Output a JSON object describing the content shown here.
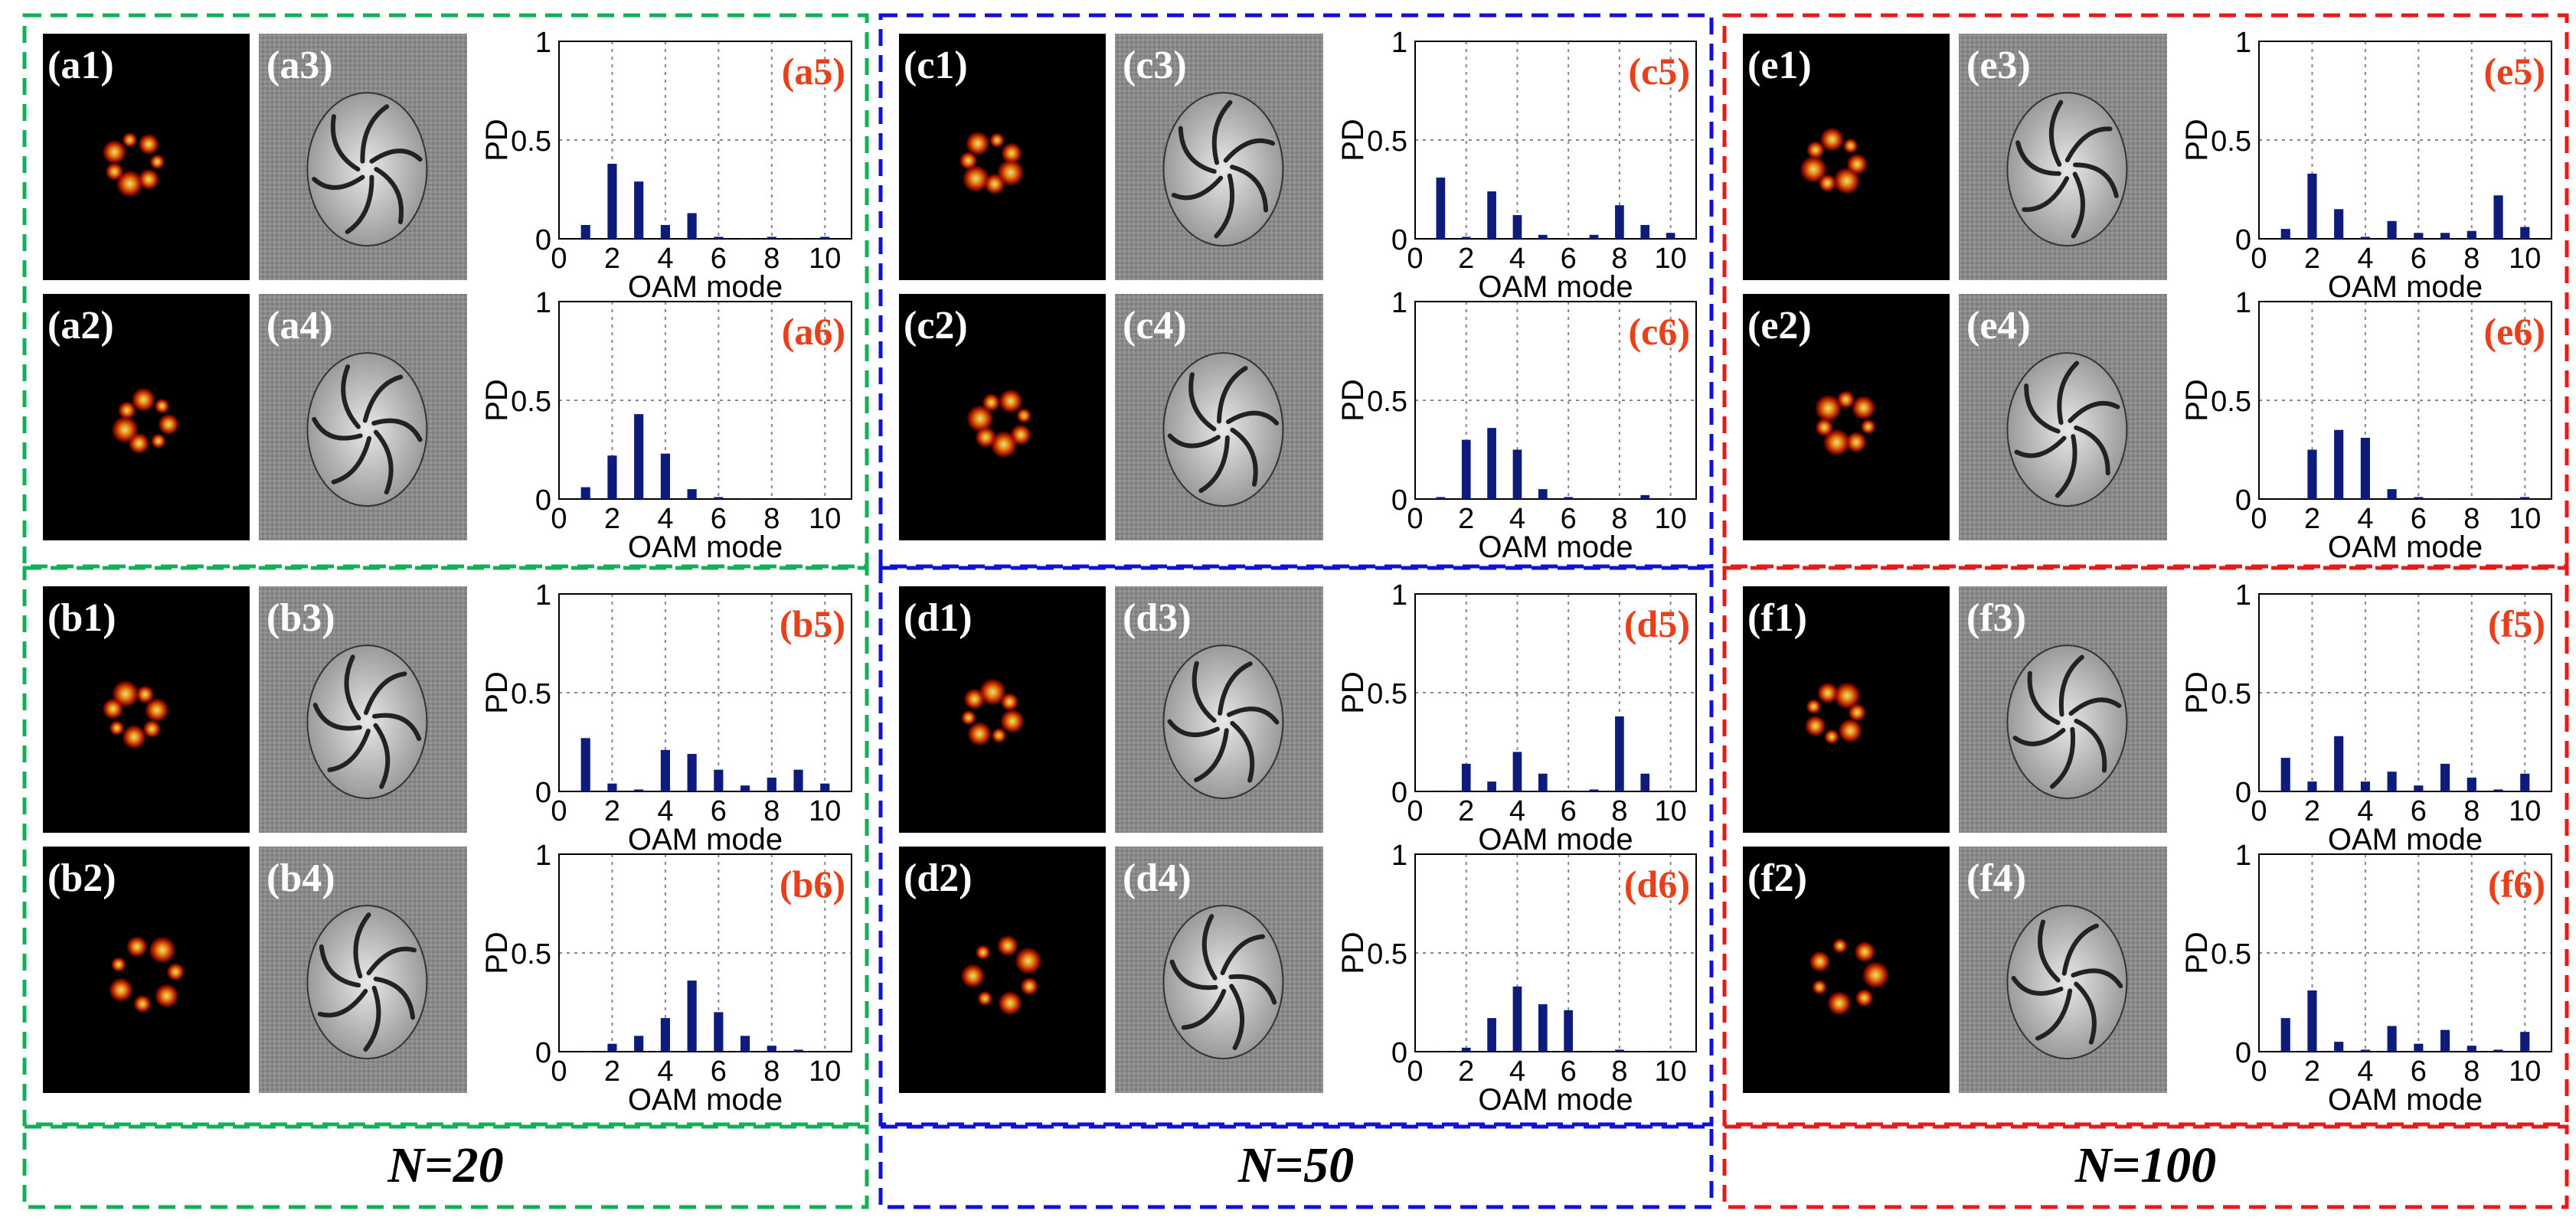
{
  "colors": {
    "group_borders": [
      "#13b05a",
      "#1010d8",
      "#e8191a"
    ],
    "bar": "#0d1b7a",
    "chart_label": "#e8401a",
    "intensity_bg": "#000000",
    "phase_bg": "#808080"
  },
  "n_labels": [
    "N=20",
    "N=50",
    "N=100"
  ],
  "chart_axis": {
    "ylabel": "PD",
    "xlabel": "OAM mode",
    "yticks": [
      "0",
      "0.5",
      "1"
    ],
    "xticks": [
      "0",
      "2",
      "4",
      "6",
      "8",
      "10"
    ]
  },
  "blocks": [
    {
      "intensity_labels": [
        "(a1)",
        "(a2)"
      ],
      "phase_labels": [
        "(a3)",
        "(a4)"
      ]
    },
    {
      "intensity_labels": [
        "(b1)",
        "(b2)"
      ],
      "phase_labels": [
        "(b3)",
        "(b4)"
      ]
    },
    {
      "intensity_labels": [
        "(c1)",
        "(c2)"
      ],
      "phase_labels": [
        "(c3)",
        "(c4)"
      ]
    },
    {
      "intensity_labels": [
        "(d1)",
        "(d2)"
      ],
      "phase_labels": [
        "(d3)",
        "(d4)"
      ]
    },
    {
      "intensity_labels": [
        "(e1)",
        "(e2)"
      ],
      "phase_labels": [
        "(e3)",
        "(e4)"
      ]
    },
    {
      "intensity_labels": [
        "(f1)",
        "(f2)"
      ],
      "phase_labels": [
        "(f3)",
        "(f4)"
      ]
    }
  ],
  "chart_data": [
    {
      "type": "bar",
      "label": "(a5)",
      "xlabel": "OAM mode",
      "ylabel": "PD",
      "ylim": [
        0,
        1
      ],
      "xlim": [
        0,
        11
      ],
      "grid": true,
      "x": [
        1,
        2,
        3,
        4,
        5,
        6,
        7,
        8,
        9,
        10
      ],
      "values": [
        0.07,
        0.38,
        0.29,
        0.07,
        0.13,
        0.01,
        0.0,
        0.01,
        0.0,
        0.01
      ]
    },
    {
      "type": "bar",
      "label": "(a6)",
      "xlabel": "OAM mode",
      "ylabel": "PD",
      "ylim": [
        0,
        1
      ],
      "xlim": [
        0,
        11
      ],
      "grid": true,
      "x": [
        1,
        2,
        3,
        4,
        5,
        6,
        7,
        8,
        9,
        10
      ],
      "values": [
        0.06,
        0.22,
        0.43,
        0.23,
        0.05,
        0.01,
        0.0,
        0.0,
        0.0,
        0.0
      ]
    },
    {
      "type": "bar",
      "label": "(b5)",
      "xlabel": "OAM mode",
      "ylabel": "PD",
      "ylim": [
        0,
        1
      ],
      "xlim": [
        0,
        11
      ],
      "grid": true,
      "x": [
        1,
        2,
        3,
        4,
        5,
        6,
        7,
        8,
        9,
        10
      ],
      "values": [
        0.27,
        0.04,
        0.01,
        0.21,
        0.19,
        0.11,
        0.03,
        0.07,
        0.11,
        0.04
      ]
    },
    {
      "type": "bar",
      "label": "(b6)",
      "xlabel": "OAM mode",
      "ylabel": "PD",
      "ylim": [
        0,
        1
      ],
      "xlim": [
        0,
        11
      ],
      "grid": true,
      "x": [
        1,
        2,
        3,
        4,
        5,
        6,
        7,
        8,
        9,
        10
      ],
      "values": [
        0.0,
        0.04,
        0.08,
        0.17,
        0.36,
        0.2,
        0.08,
        0.03,
        0.01,
        0.0
      ]
    },
    {
      "type": "bar",
      "label": "(c5)",
      "xlabel": "OAM mode",
      "ylabel": "PD",
      "ylim": [
        0,
        1
      ],
      "xlim": [
        0,
        11
      ],
      "grid": true,
      "x": [
        1,
        2,
        3,
        4,
        5,
        6,
        7,
        8,
        9,
        10
      ],
      "values": [
        0.31,
        0.01,
        0.24,
        0.12,
        0.02,
        0.0,
        0.02,
        0.17,
        0.07,
        0.03
      ]
    },
    {
      "type": "bar",
      "label": "(c6)",
      "xlabel": "OAM mode",
      "ylabel": "PD",
      "ylim": [
        0,
        1
      ],
      "xlim": [
        0,
        11
      ],
      "grid": true,
      "x": [
        1,
        2,
        3,
        4,
        5,
        6,
        7,
        8,
        9,
        10
      ],
      "values": [
        0.01,
        0.3,
        0.36,
        0.25,
        0.05,
        0.01,
        0.0,
        0.0,
        0.02,
        0.0
      ]
    },
    {
      "type": "bar",
      "label": "(d5)",
      "xlabel": "OAM mode",
      "ylabel": "PD",
      "ylim": [
        0,
        1
      ],
      "xlim": [
        0,
        11
      ],
      "grid": true,
      "x": [
        1,
        2,
        3,
        4,
        5,
        6,
        7,
        8,
        9,
        10
      ],
      "values": [
        0.0,
        0.14,
        0.05,
        0.2,
        0.09,
        0.0,
        0.01,
        0.38,
        0.09,
        0.0
      ]
    },
    {
      "type": "bar",
      "label": "(d6)",
      "xlabel": "OAM mode",
      "ylabel": "PD",
      "ylim": [
        0,
        1
      ],
      "xlim": [
        0,
        11
      ],
      "grid": true,
      "x": [
        1,
        2,
        3,
        4,
        5,
        6,
        7,
        8,
        9,
        10
      ],
      "values": [
        0.0,
        0.02,
        0.17,
        0.33,
        0.24,
        0.21,
        0.0,
        0.01,
        0.0,
        0.0
      ]
    },
    {
      "type": "bar",
      "label": "(e5)",
      "xlabel": "OAM mode",
      "ylabel": "PD",
      "ylim": [
        0,
        1
      ],
      "xlim": [
        0,
        11
      ],
      "grid": true,
      "x": [
        1,
        2,
        3,
        4,
        5,
        6,
        7,
        8,
        9,
        10
      ],
      "values": [
        0.05,
        0.33,
        0.15,
        0.01,
        0.09,
        0.03,
        0.03,
        0.04,
        0.22,
        0.06
      ]
    },
    {
      "type": "bar",
      "label": "(e6)",
      "xlabel": "OAM mode",
      "ylabel": "PD",
      "ylim": [
        0,
        1
      ],
      "xlim": [
        0,
        11
      ],
      "grid": true,
      "x": [
        1,
        2,
        3,
        4,
        5,
        6,
        7,
        8,
        9,
        10
      ],
      "values": [
        0.0,
        0.25,
        0.35,
        0.31,
        0.05,
        0.01,
        0.0,
        0.0,
        0.0,
        0.01
      ]
    },
    {
      "type": "bar",
      "label": "(f5)",
      "xlabel": "OAM mode",
      "ylabel": "PD",
      "ylim": [
        0,
        1
      ],
      "xlim": [
        0,
        11
      ],
      "grid": true,
      "x": [
        1,
        2,
        3,
        4,
        5,
        6,
        7,
        8,
        9,
        10
      ],
      "values": [
        0.17,
        0.05,
        0.28,
        0.05,
        0.1,
        0.03,
        0.14,
        0.07,
        0.01,
        0.09
      ]
    },
    {
      "type": "bar",
      "label": "(f6)",
      "xlabel": "OAM mode",
      "ylabel": "PD",
      "ylim": [
        0,
        1
      ],
      "xlim": [
        0,
        11
      ],
      "grid": true,
      "x": [
        1,
        2,
        3,
        4,
        5,
        6,
        7,
        8,
        9,
        10
      ],
      "values": [
        0.17,
        0.31,
        0.05,
        0.01,
        0.13,
        0.04,
        0.11,
        0.03,
        0.01,
        0.1
      ]
    }
  ]
}
